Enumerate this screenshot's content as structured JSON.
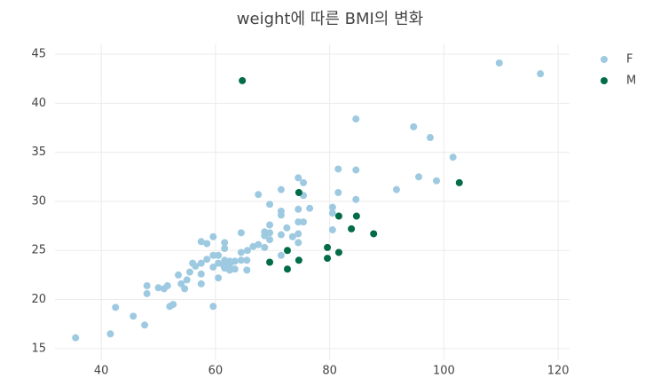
{
  "chart_data": {
    "type": "scatter",
    "title": "weight에 따른 BMI의 변화",
    "xlim": [
      31.9,
      122
    ],
    "ylim": [
      13.9,
      46
    ],
    "xticks": [
      40,
      60,
      80,
      100,
      120
    ],
    "yticks": [
      15,
      20,
      25,
      30,
      35,
      40,
      45
    ],
    "grid": true,
    "legend": "top-right",
    "series": [
      {
        "name": "F",
        "color": "#9ecae1",
        "x": [
          35.5,
          41.6,
          42.5,
          45.6,
          47.6,
          48,
          48,
          50,
          51,
          51.6,
          52,
          52.6,
          53.5,
          54,
          54.6,
          55,
          55.5,
          56,
          56.5,
          57.5,
          57.5,
          57.5,
          57.5,
          58.5,
          58.5,
          59.6,
          59.6,
          59.6,
          59.6,
          60.5,
          60.5,
          60.5,
          61.4,
          61.6,
          61.6,
          61.6,
          61.6,
          62.5,
          62.5,
          62.5,
          63.4,
          63.4,
          64.5,
          64.5,
          64.5,
          65.5,
          65.5,
          65.6,
          66.6,
          67.5,
          67.5,
          68.6,
          68.6,
          68.6,
          69.5,
          69.5,
          69.5,
          69.5,
          71.5,
          71.5,
          71.5,
          71.5,
          71.5,
          72.5,
          73.5,
          74.5,
          74.5,
          74.5,
          74.5,
          74.5,
          75.4,
          75.4,
          75.4,
          76.5,
          80.5,
          80.5,
          80.5,
          81.5,
          81.5,
          84.6,
          84.6,
          84.6,
          91.7,
          94.7,
          95.6,
          97.6,
          98.7,
          101.6,
          109.7,
          116.9
        ],
        "values": [
          16.1,
          16.5,
          19.2,
          18.3,
          17.4,
          21.4,
          20.6,
          21.2,
          21.1,
          21.4,
          19.3,
          19.5,
          22.5,
          21.6,
          21.1,
          22.0,
          22.8,
          23.7,
          23.4,
          22.6,
          21.6,
          23.7,
          25.9,
          24.1,
          25.7,
          26.4,
          24.5,
          23.3,
          19.3,
          23.7,
          24.5,
          22.2,
          23.5,
          24.0,
          23.2,
          25.8,
          25.2,
          23.0,
          23.9,
          23.6,
          23.9,
          23.1,
          24.0,
          24.8,
          26.8,
          24.0,
          23.0,
          25.0,
          25.4,
          25.6,
          30.7,
          25.3,
          26.5,
          26.9,
          26.8,
          26.1,
          27.6,
          29.7,
          26.6,
          28.6,
          29.0,
          31.2,
          24.5,
          27.3,
          26.4,
          25.8,
          26.7,
          27.9,
          29.2,
          32.4,
          31.9,
          30.6,
          27.9,
          29.3,
          29.4,
          28.8,
          27.1,
          30.9,
          33.3,
          33.2,
          30.2,
          38.4,
          31.2,
          37.6,
          32.5,
          36.5,
          32.1,
          34.5,
          44.1,
          43.0
        ]
      },
      {
        "name": "M",
        "color": "#016c45",
        "x": [
          64.7,
          69.5,
          72.6,
          72.6,
          74.6,
          74.6,
          79.6,
          79.6,
          81.6,
          81.6,
          83.8,
          84.7,
          87.7,
          102.7
        ],
        "values": [
          42.3,
          23.8,
          25.0,
          23.1,
          30.9,
          24.0,
          25.3,
          24.2,
          28.5,
          24.8,
          27.2,
          28.5,
          26.7,
          31.9
        ]
      }
    ]
  }
}
